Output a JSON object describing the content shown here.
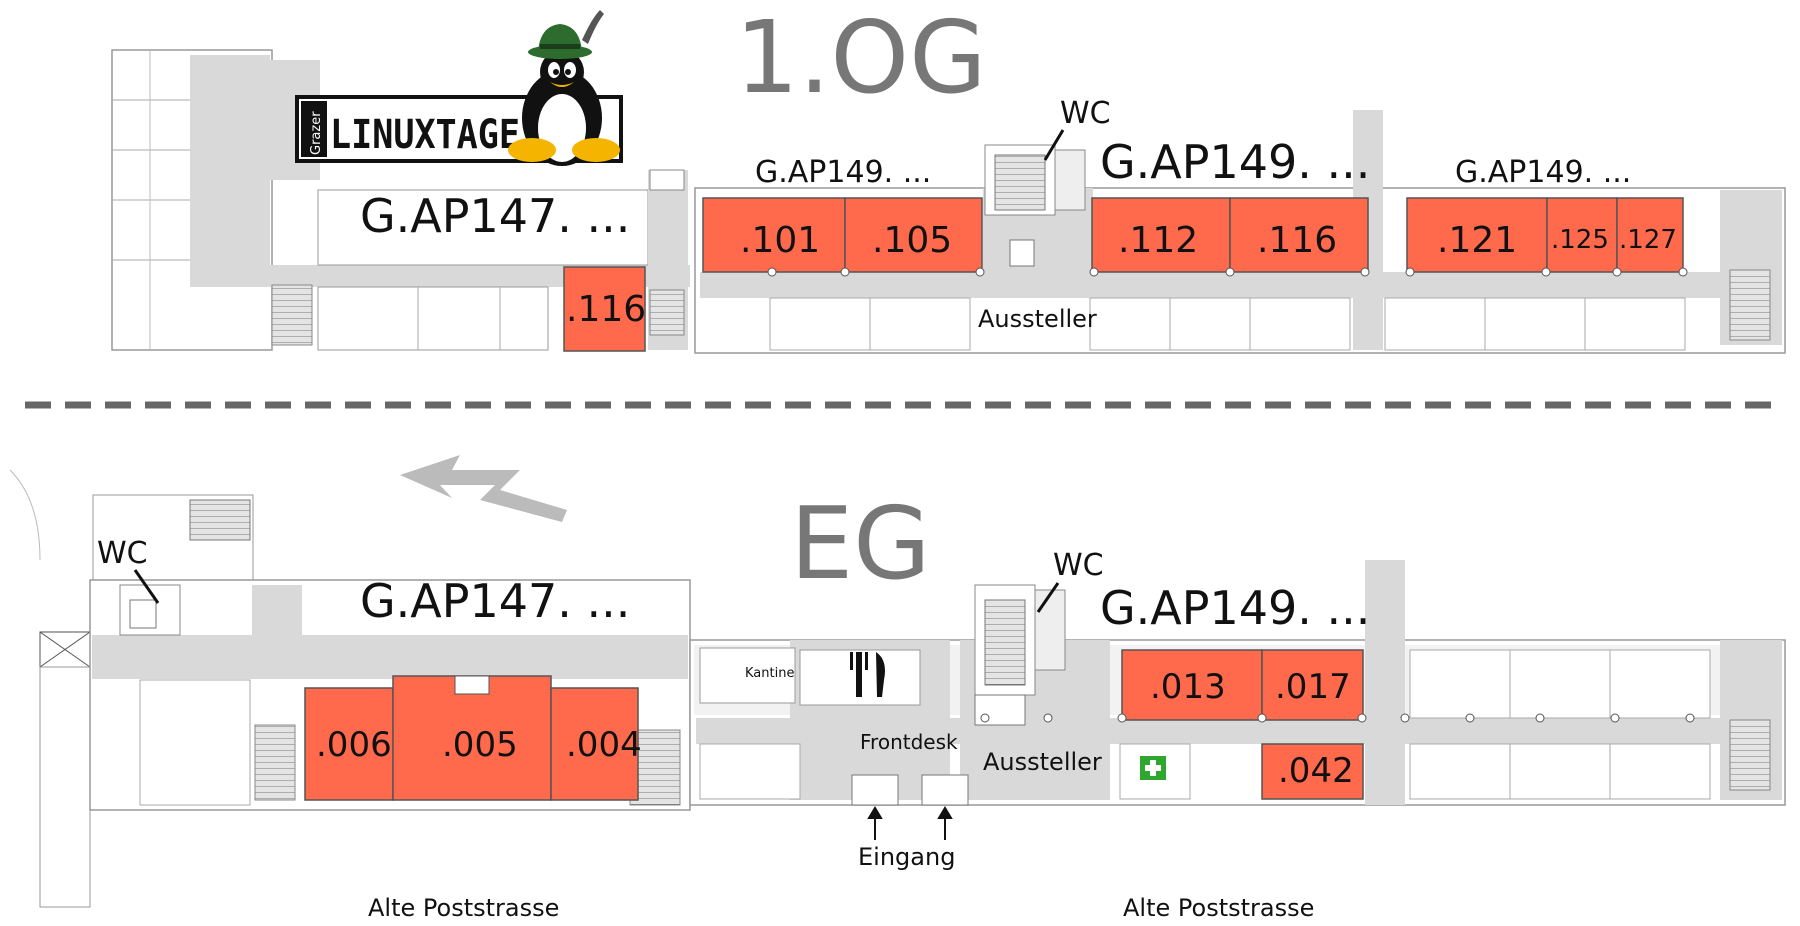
{
  "floors": {
    "upper": {
      "title": "1.OG",
      "wings": {
        "west": "G.AP147. ...",
        "mid": "G.AP149. ...",
        "east": "G.AP149. ..."
      },
      "rooms": [
        ".116",
        ".101",
        ".105",
        ".112",
        ".116",
        ".121",
        ".125",
        ".127"
      ],
      "labels": {
        "wc": "WC",
        "exhibitors": "Aussteller"
      }
    },
    "ground": {
      "title": "EG",
      "wings": {
        "west": "G.AP147. ...",
        "east": "G.AP149. ..."
      },
      "rooms": [
        ".006",
        ".005",
        ".004",
        ".013",
        ".017",
        ".042"
      ],
      "labels": {
        "wc_west": "WC",
        "wc_mid": "WC",
        "canteen": "Kantine",
        "frontdesk": "Frontdesk",
        "exhibitors": "Aussteller",
        "entrance": "Eingang"
      }
    }
  },
  "streets": [
    "Alte Poststrasse",
    "Alte Poststrasse"
  ],
  "logo": {
    "small": "Grazer",
    "main": "LINUXTAGE"
  },
  "colors": {
    "highlight": "#ff6a4d",
    "corridor": "#d9d9d9",
    "outline": "#9a9a9a",
    "firstaid": "#2fa62f"
  }
}
